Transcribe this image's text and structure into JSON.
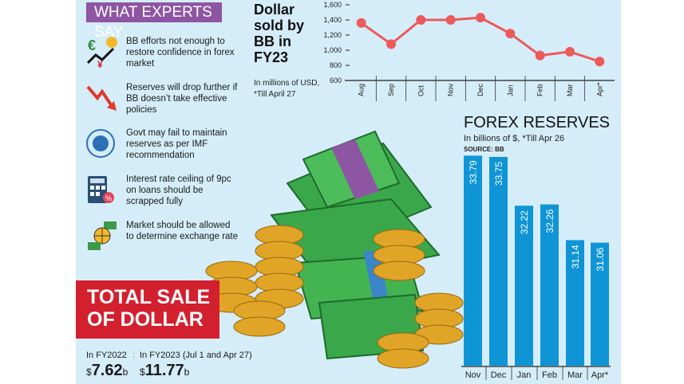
{
  "experts": {
    "title": "WHAT EXPERTS SAY…",
    "items": [
      {
        "icon": "currency-growth-icon",
        "text": "BB efforts not enough to restore confidence in forex market"
      },
      {
        "icon": "downtrend-arrow-icon",
        "text": "Reserves will drop further if BB doesn’t take effective policies"
      },
      {
        "icon": "imf-seal-icon",
        "text": "Govt may fail to maintain reserves as per IMF recommendation"
      },
      {
        "icon": "calculator-percent-icon",
        "text": "Interest rate ceiling of 9pc on loans should be scrapped fully"
      },
      {
        "icon": "globe-exchange-icon",
        "text": "Market should be allowed to determine exchange rate"
      }
    ]
  },
  "total_sale": {
    "title_line1": "TOTAL SALE",
    "title_line2": "OF DOLLAR",
    "fy2022_label": "In FY2022",
    "fy2022_currency": "$",
    "fy2022_value": "7.62",
    "fy2022_unit": "b",
    "fy2023_label": "In FY2023 (Jul 1 and Apr 27)",
    "fy2023_currency": "$",
    "fy2023_value": "11.77",
    "fy2023_unit": "b"
  },
  "colors": {
    "panel": "#d5edf9",
    "experts": "#8e55a3",
    "banner": "#d3202f",
    "line": "#ec5a5a",
    "bar": "#0f95d6"
  },
  "chart_data": [
    {
      "type": "line",
      "title": "Dollar sold by BB in FY23",
      "note_line1": "In millions of USD,",
      "note_line2": "*Till April 27",
      "categories": [
        "Aug",
        "Sep",
        "Oct",
        "Nov",
        "Dec",
        "Jan",
        "Feb",
        "Mar",
        "Apr*"
      ],
      "values": [
        1360,
        1080,
        1400,
        1400,
        1430,
        1220,
        930,
        980,
        850
      ],
      "yticks": [
        "1,600",
        "1,400",
        "1,200",
        "1,000",
        "800",
        "600"
      ],
      "ylim": [
        600,
        1600
      ]
    },
    {
      "type": "bar",
      "title": "FOREX RESERVES",
      "subtitle": "In billions of $, *Till Apr 26",
      "source": "SOURCE: BB",
      "categories": [
        "Nov",
        "Dec",
        "Jan",
        "Feb",
        "Mar",
        "Apr*"
      ],
      "values": [
        33.79,
        33.75,
        32.22,
        32.26,
        31.14,
        31.06
      ],
      "labels": [
        "33.79",
        "33.75",
        "32.22",
        "32.26",
        "31.14",
        "31.06"
      ]
    }
  ]
}
